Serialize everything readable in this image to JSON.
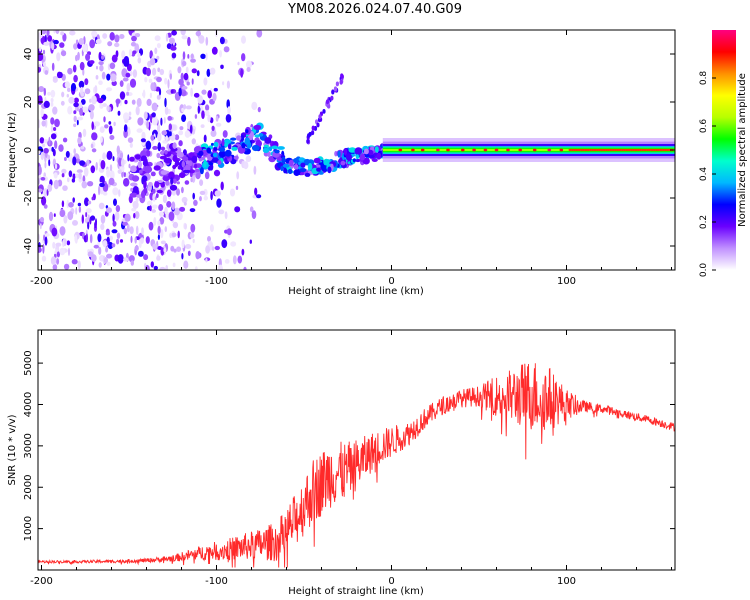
{
  "title": "YM08.2026.024.07.40.G09",
  "chart_data": [
    {
      "type": "heatmap",
      "title": "YM08.2026.024.07.40.G09",
      "xlabel": "Height of straight line (km)",
      "ylabel": "Frequency (Hz)",
      "xlim": [
        -202,
        162
      ],
      "ylim": [
        -50,
        50
      ],
      "xticks": [
        -200,
        -100,
        0,
        100
      ],
      "yticks": [
        -40,
        -20,
        0,
        20,
        40
      ],
      "trend": {
        "description": "Doppler frequency of the dominant spectral peak versus height; scattered noise below -120 km, rising streak near -50 to -25 km, narrow stable line at ~0 Hz above 0 km",
        "x": [
          -150,
          -120,
          -90,
          -75,
          -60,
          -45,
          -30,
          -15,
          0,
          20,
          50,
          100,
          160
        ],
        "y": [
          -12,
          -6,
          0,
          6,
          -6,
          -8,
          -4,
          -2,
          0,
          0,
          0,
          0,
          0
        ]
      },
      "colorbar": {
        "label": "Normalized spectral amplitude",
        "range": [
          0.0,
          1.0
        ],
        "ticks": [
          0.0,
          0.2,
          0.4,
          0.6,
          0.8
        ],
        "tick_labels": [
          "0.0",
          "0.2",
          "0.4",
          "0.6",
          "0.8"
        ],
        "colors": [
          "#ffffff",
          "#c090ff",
          "#6a00ff",
          "#0000ff",
          "#00b8ff",
          "#00ffcc",
          "#00ff00",
          "#b8ff00",
          "#ffff00",
          "#ff9000",
          "#ff0000",
          "#ff0080"
        ]
      }
    },
    {
      "type": "line",
      "xlabel": "Height of straight line (km)",
      "ylabel": "SNR (10 * v/v)",
      "xlim": [
        -202,
        162
      ],
      "ylim": [
        0,
        5800
      ],
      "xticks": [
        -200,
        -100,
        0,
        100
      ],
      "yticks": [
        1000,
        2000,
        3000,
        4000,
        5000
      ],
      "series": [
        {
          "name": "SNR",
          "color": "#ff2a2a",
          "x": [
            -202,
            -180,
            -160,
            -140,
            -125,
            -115,
            -105,
            -95,
            -85,
            -75,
            -65,
            -55,
            -45,
            -35,
            -25,
            -15,
            -10,
            -5,
            0,
            10,
            20,
            30,
            40,
            50,
            60,
            70,
            80,
            90,
            100,
            110,
            120,
            130,
            140,
            150,
            162
          ],
          "y": [
            200,
            200,
            210,
            230,
            280,
            360,
            440,
            480,
            560,
            620,
            700,
            1200,
            1900,
            2300,
            2400,
            2700,
            2900,
            3000,
            3100,
            3300,
            3700,
            4000,
            4150,
            4200,
            4200,
            4200,
            4250,
            4150,
            4000,
            3950,
            3900,
            3800,
            3700,
            3600,
            3450
          ],
          "noise": [
            30,
            30,
            40,
            50,
            80,
            140,
            200,
            260,
            320,
            380,
            500,
            650,
            800,
            800,
            700,
            550,
            450,
            420,
            380,
            300,
            250,
            220,
            220,
            250,
            500,
            700,
            900,
            800,
            380,
            140,
            110,
            100,
            100,
            100,
            100
          ]
        }
      ]
    }
  ]
}
